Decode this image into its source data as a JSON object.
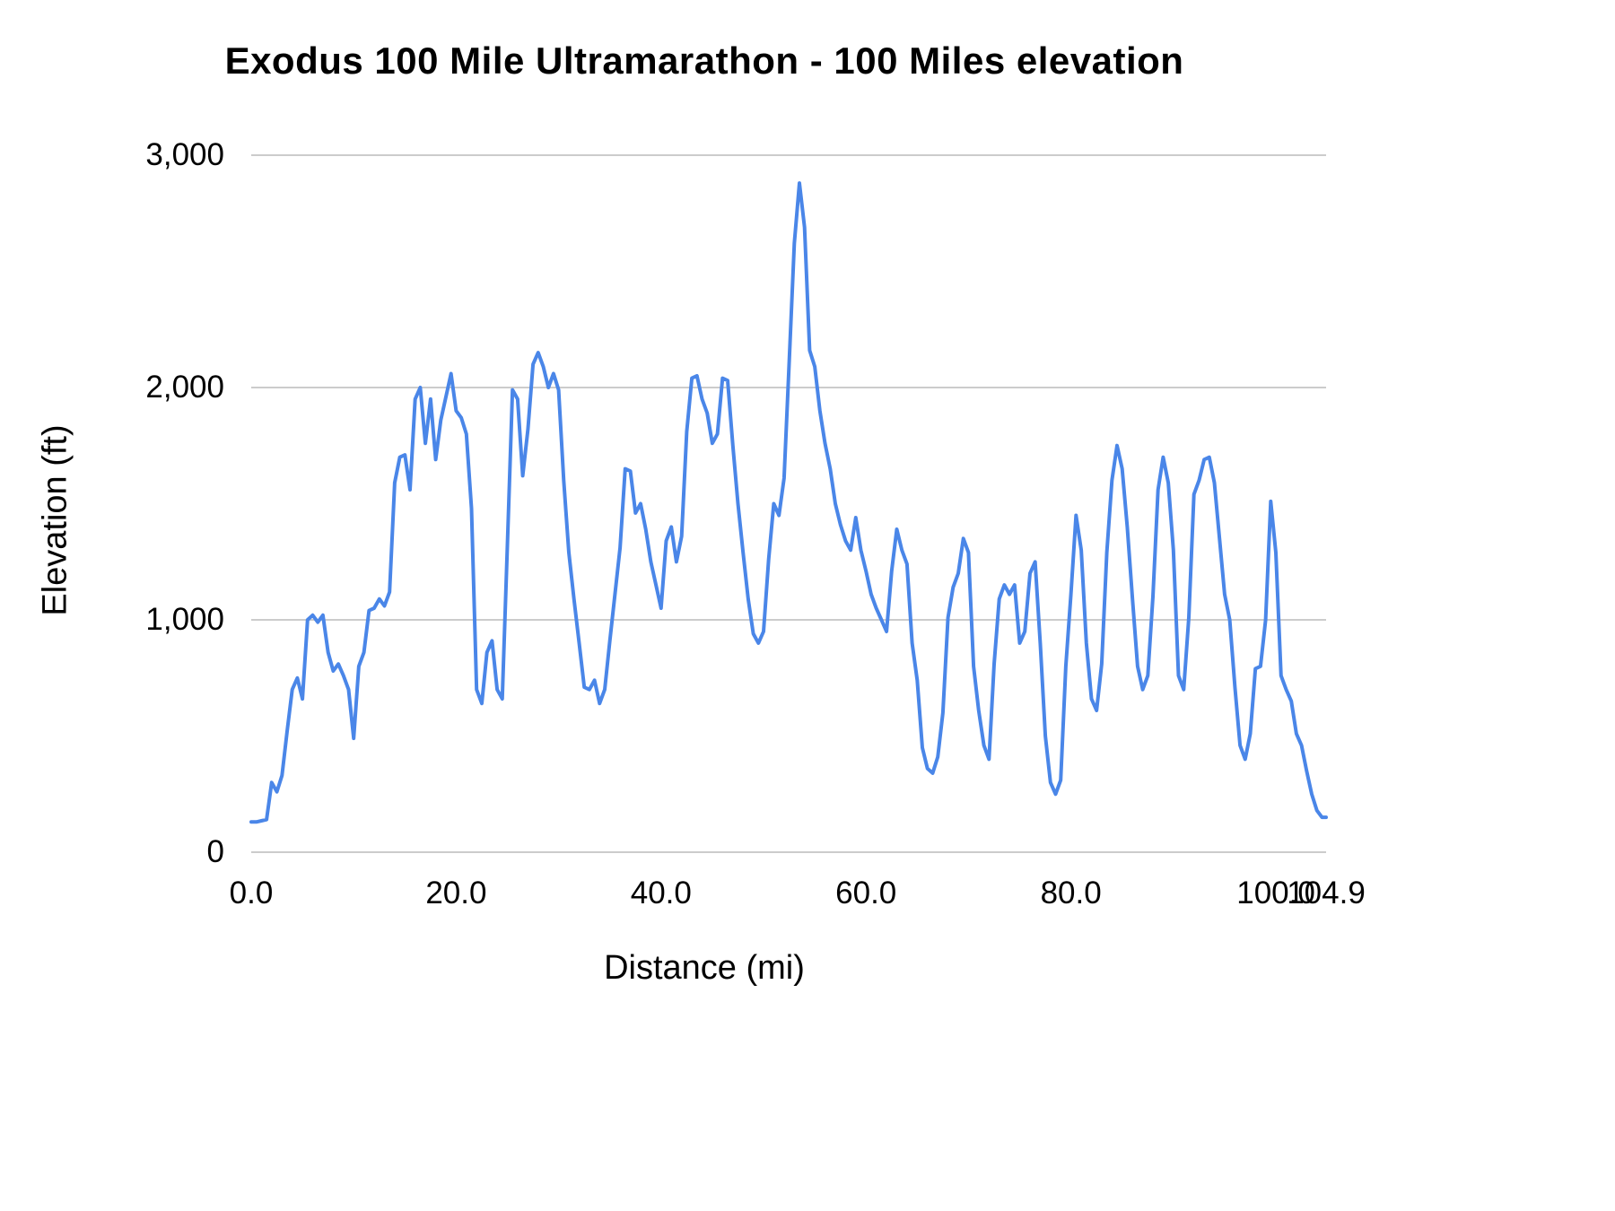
{
  "page": {
    "background": "#ffffff"
  },
  "chart_data": {
    "type": "line",
    "title": "Exodus 100 Mile Ultramarathon - 100 Miles elevation",
    "xlabel": "Distance (mi)",
    "ylabel": "Elevation (ft)",
    "xlim": [
      0,
      104.9
    ],
    "ylim": [
      0,
      3000
    ],
    "grid": true,
    "legend_position": "none",
    "line_color": "#4a86e8",
    "grid_color": "#cccccc",
    "x_ticks": [
      "0.0",
      "20.0",
      "40.0",
      "60.0",
      "80.0",
      "100.0",
      "104.9"
    ],
    "x_tick_values": [
      0,
      20,
      40,
      60,
      80,
      100,
      104.9
    ],
    "y_ticks": [
      "0",
      "1,000",
      "2,000",
      "3,000"
    ],
    "y_tick_values": [
      0,
      1000,
      2000,
      3000
    ],
    "series": [
      {
        "name": "100 Miles",
        "x_start": 0,
        "x_step": 0.5,
        "x_end": 104.9,
        "y": [
          130,
          130,
          135,
          140,
          300,
          260,
          330,
          520,
          700,
          750,
          660,
          1000,
          1020,
          990,
          1020,
          860,
          780,
          810,
          760,
          700,
          490,
          800,
          860,
          1040,
          1050,
          1090,
          1060,
          1120,
          1590,
          1700,
          1710,
          1560,
          1950,
          2000,
          1760,
          1950,
          1690,
          1860,
          1960,
          2060,
          1900,
          1870,
          1800,
          1480,
          700,
          640,
          860,
          910,
          700,
          660,
          1320,
          1990,
          1950,
          1620,
          1820,
          2100,
          2150,
          2090,
          2000,
          2060,
          1990,
          1600,
          1290,
          1090,
          900,
          710,
          700,
          740,
          640,
          700,
          910,
          1110,
          1310,
          1650,
          1640,
          1460,
          1500,
          1390,
          1250,
          1150,
          1050,
          1340,
          1400,
          1250,
          1360,
          1810,
          2040,
          2050,
          1950,
          1890,
          1760,
          1800,
          2040,
          2030,
          1750,
          1500,
          1290,
          1090,
          940,
          900,
          950,
          1260,
          1500,
          1450,
          1610,
          2110,
          2620,
          2880,
          2690,
          2160,
          2090,
          1900,
          1760,
          1650,
          1500,
          1410,
          1340,
          1300,
          1440,
          1300,
          1210,
          1110,
          1050,
          1000,
          950,
          1210,
          1390,
          1300,
          1240,
          900,
          740,
          450,
          360,
          340,
          410,
          600,
          1010,
          1140,
          1200,
          1350,
          1290,
          800,
          610,
          460,
          400,
          810,
          1090,
          1150,
          1110,
          1150,
          900,
          950,
          1200,
          1250,
          900,
          500,
          300,
          250,
          310,
          800,
          1110,
          1450,
          1300,
          900,
          660,
          610,
          810,
          1290,
          1600,
          1750,
          1650,
          1400,
          1090,
          800,
          700,
          760,
          1100,
          1560,
          1700,
          1590,
          1300,
          760,
          700,
          1010,
          1540,
          1600,
          1690,
          1700,
          1590,
          1350,
          1110,
          1000,
          710,
          460,
          400,
          510,
          790,
          800,
          1000,
          1510,
          1290,
          760,
          700,
          650,
          510,
          460,
          350,
          250,
          180,
          150,
          150
        ]
      }
    ]
  }
}
